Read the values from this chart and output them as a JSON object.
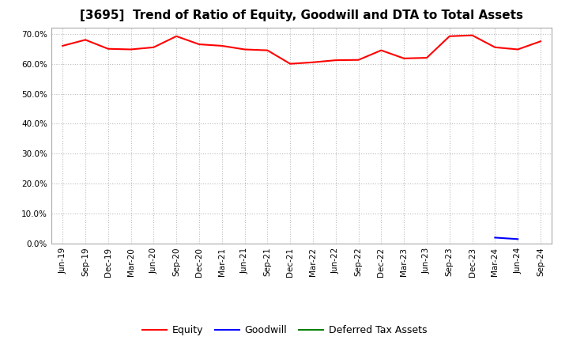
{
  "title": "[3695]  Trend of Ratio of Equity, Goodwill and DTA to Total Assets",
  "x_labels": [
    "Jun-19",
    "Sep-19",
    "Dec-19",
    "Mar-20",
    "Jun-20",
    "Sep-20",
    "Dec-20",
    "Mar-21",
    "Jun-21",
    "Sep-21",
    "Dec-21",
    "Mar-22",
    "Jun-22",
    "Sep-22",
    "Dec-22",
    "Mar-23",
    "Jun-23",
    "Sep-23",
    "Dec-23",
    "Mar-24",
    "Jun-24",
    "Sep-24"
  ],
  "equity": [
    0.66,
    0.68,
    0.65,
    0.648,
    0.655,
    0.692,
    0.665,
    0.66,
    0.648,
    0.645,
    0.6,
    0.605,
    0.612,
    0.613,
    0.645,
    0.618,
    0.62,
    0.692,
    0.695,
    0.655,
    0.648,
    0.675
  ],
  "goodwill": [
    null,
    null,
    null,
    null,
    null,
    null,
    null,
    null,
    null,
    null,
    null,
    null,
    null,
    null,
    null,
    null,
    null,
    null,
    null,
    0.02,
    0.015,
    null
  ],
  "dta": [
    null,
    null,
    null,
    null,
    null,
    null,
    null,
    null,
    null,
    null,
    null,
    null,
    null,
    null,
    null,
    null,
    null,
    null,
    null,
    null,
    null,
    null
  ],
  "equity_color": "#FF0000",
  "goodwill_color": "#0000FF",
  "dta_color": "#008000",
  "ylim": [
    0.0,
    0.72
  ],
  "yticks": [
    0.0,
    0.1,
    0.2,
    0.3,
    0.4,
    0.5,
    0.6,
    0.7
  ],
  "background_color": "#FFFFFF",
  "plot_bg_color": "#FFFFFF",
  "grid_color": "#BBBBBB",
  "title_fontsize": 11,
  "tick_fontsize": 7.5,
  "legend_labels": [
    "Equity",
    "Goodwill",
    "Deferred Tax Assets"
  ],
  "legend_fontsize": 9
}
